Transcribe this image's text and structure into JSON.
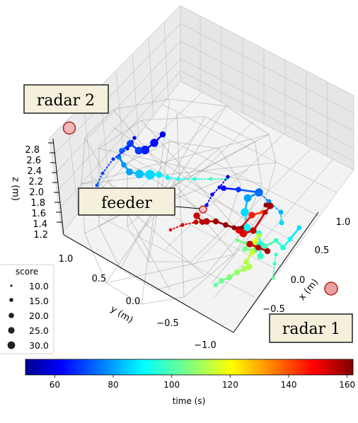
{
  "chart_data": {
    "type": "scatter",
    "projection": "3d",
    "axes": {
      "x": {
        "label": "x (m)",
        "ticks": [
          "−0.5",
          "0.0",
          "0.5",
          "1.0"
        ]
      },
      "y": {
        "label": "y (m)",
        "ticks": [
          "−1.0",
          "−0.5",
          "0.0",
          "0.5",
          "1.0"
        ]
      },
      "z": {
        "label": "z (m)",
        "ticks": [
          "1.2",
          "1.4",
          "1.6",
          "1.8",
          "2.0",
          "2.2",
          "2.4",
          "2.6",
          "2.8"
        ]
      }
    },
    "grid": true,
    "colorbar": {
      "label": "time (s)",
      "colormap": "jet",
      "range": [
        50,
        162
      ],
      "ticks": [
        "60",
        "80",
        "100",
        "120",
        "140",
        "160"
      ],
      "placement": "bottom"
    },
    "legend": {
      "title": "score",
      "placement": "left",
      "entries": [
        "10.0",
        "15.0",
        "20.0",
        "25.0",
        "30.0"
      ]
    },
    "annotations": [
      {
        "text": "radar 2"
      },
      {
        "text": "feeder"
      },
      {
        "text": "radar 1"
      }
    ],
    "marker_colors": {
      "radar_fill": "#e8a0a0",
      "radar_edge": "#b02020",
      "label_box_fill": "#f5f0dc",
      "label_box_edge": "#000000"
    },
    "tracks": [
      {
        "points": [
          [
            230,
            190,
            62,
            16
          ],
          [
            218,
            202,
            65,
            24
          ],
          [
            205,
            212,
            67,
            26
          ],
          [
            196,
            213,
            70,
            22
          ],
          [
            184,
            203,
            72,
            20
          ],
          [
            172,
            213,
            75,
            14
          ],
          [
            168,
            222,
            77,
            12
          ],
          [
            175,
            233,
            80,
            14
          ],
          [
            183,
            243,
            82,
            20
          ],
          [
            197,
            246,
            85,
            26
          ],
          [
            212,
            247,
            88,
            30
          ],
          [
            225,
            247,
            90,
            18
          ],
          [
            237,
            251,
            92,
            12
          ],
          [
            252,
            253,
            94,
            9
          ],
          [
            275,
            253,
            96,
            8
          ],
          [
            298,
            253,
            98,
            7
          ],
          [
            320,
            253,
            100,
            7
          ]
        ],
        "styles": [
          "solid",
          "solid",
          "solid",
          "solid",
          "solid",
          "dotted",
          "solid",
          "solid",
          "solid",
          "solid",
          "solid",
          "dotted",
          "dotted",
          "dotted",
          "dotted",
          "dotted"
        ]
      },
      {
        "points": [
          [
            190,
            195,
            63,
            8
          ],
          [
            180,
            210,
            66,
            8
          ],
          [
            160,
            225,
            69,
            7
          ],
          [
            145,
            245,
            72,
            7
          ],
          [
            137,
            262,
            74,
            7
          ]
        ],
        "styles": [
          "dotted",
          "dotted",
          "dotted",
          "dotted"
        ]
      },
      {
        "points": [
          [
            322,
            250,
            60,
            8
          ],
          [
            310,
            265,
            62,
            8
          ],
          [
            300,
            275,
            64,
            8
          ],
          [
            292,
            290,
            66,
            8
          ]
        ],
        "styles": [
          "dotted",
          "dotted",
          "dotted"
        ]
      },
      {
        "points": [
          [
            316,
            266,
            64,
            14
          ],
          [
            337,
            268,
            70,
            14
          ],
          [
            366,
            272,
            76,
            24
          ],
          [
            350,
            280,
            82,
            22
          ],
          [
            346,
            300,
            88,
            24
          ],
          [
            349,
            322,
            92,
            22
          ],
          [
            366,
            330,
            94,
            16
          ],
          [
            368,
            346,
            96,
            22
          ],
          [
            368,
            362,
            98,
            18
          ]
        ],
        "styles": [
          "solid",
          "solid",
          "solid",
          "solid",
          "solid",
          "solid",
          "solid",
          "solid"
        ]
      },
      {
        "points": [
          [
            366,
            272,
            76,
            12
          ],
          [
            380,
            285,
            80,
            12
          ],
          [
            397,
            300,
            84,
            12
          ],
          [
            398,
            315,
            88,
            12
          ]
        ],
        "styles": [
          "dotted",
          "dotted",
          "dotted"
        ]
      },
      {
        "points": [
          [
            423,
            322,
            88,
            12
          ],
          [
            410,
            338,
            92,
            12
          ],
          [
            400,
            350,
            96,
            14
          ],
          [
            390,
            340,
            98,
            12
          ],
          [
            375,
            348,
            100,
            14
          ],
          [
            360,
            354,
            102,
            16
          ],
          [
            346,
            352,
            104,
            14
          ]
        ],
        "styles": [
          "solid",
          "solid",
          "solid",
          "solid",
          "solid",
          "solid"
        ]
      },
      {
        "points": [
          [
            390,
            360,
            98,
            8
          ],
          [
            388,
            373,
            100,
            8
          ],
          [
            386,
            393,
            102,
            8
          ]
        ],
        "styles": [
          "dotted",
          "dotted",
          "dotted"
        ]
      },
      {
        "points": [
          [
            336,
            340,
            104,
            8
          ],
          [
            350,
            345,
            108,
            14
          ],
          [
            360,
            343,
            110,
            18
          ],
          [
            366,
            333,
            112,
            14
          ]
        ],
        "styles": [
          "solid",
          "solid",
          "solid"
        ]
      },
      {
        "points": [
          [
            348,
            370,
            112,
            14
          ],
          [
            356,
            357,
            115,
            16
          ],
          [
            361,
            340,
            118,
            12
          ]
        ],
        "styles": [
          "solid",
          "solid"
        ]
      },
      {
        "points": [
          [
            352,
            377,
            112,
            18
          ],
          [
            345,
            380,
            110,
            16
          ],
          [
            335,
            385,
            108,
            16
          ],
          [
            324,
            392,
            106,
            16
          ],
          [
            313,
            397,
            104,
            14
          ],
          [
            305,
            403,
            102,
            10
          ]
        ],
        "styles": [
          "solid",
          "solid",
          "solid",
          "solid",
          "dotted"
        ]
      },
      {
        "points": [
          [
            371,
            300,
            140,
            10
          ],
          [
            356,
            304,
            145,
            18
          ],
          [
            338,
            325,
            150,
            22
          ],
          [
            344,
            330,
            152,
            22
          ],
          [
            358,
            326,
            154,
            18
          ],
          [
            375,
            300,
            156,
            12
          ],
          [
            382,
            291,
            158,
            18
          ],
          [
            376,
            290,
            160,
            12
          ]
        ],
        "styles": [
          "solid",
          "solid",
          "solid",
          "solid",
          "solid",
          "solid",
          "solid"
        ]
      },
      {
        "points": [
          [
            241,
            325,
            150,
            6
          ],
          [
            258,
            318,
            152,
            8
          ],
          [
            277,
            314,
            154,
            12
          ],
          [
            292,
            313,
            156,
            18
          ],
          [
            305,
            313,
            158,
            16
          ],
          [
            319,
            318,
            159,
            14
          ],
          [
            331,
            322,
            160,
            12
          ],
          [
            342,
            322,
            161,
            10
          ]
        ],
        "styles": [
          "dotted",
          "dotted",
          "dotted",
          "solid",
          "solid",
          "solid",
          "solid"
        ]
      },
      {
        "points": [
          [
            278,
            305,
            154,
            18
          ],
          [
            286,
            314,
            155,
            14
          ]
        ],
        "styles": [
          "solid"
        ]
      },
      {
        "points": [
          [
            353,
            345,
            155,
            18
          ],
          [
            365,
            350,
            156,
            16
          ],
          [
            378,
            355,
            158,
            16
          ]
        ],
        "styles": [
          "solid",
          "solid"
        ]
      }
    ]
  }
}
